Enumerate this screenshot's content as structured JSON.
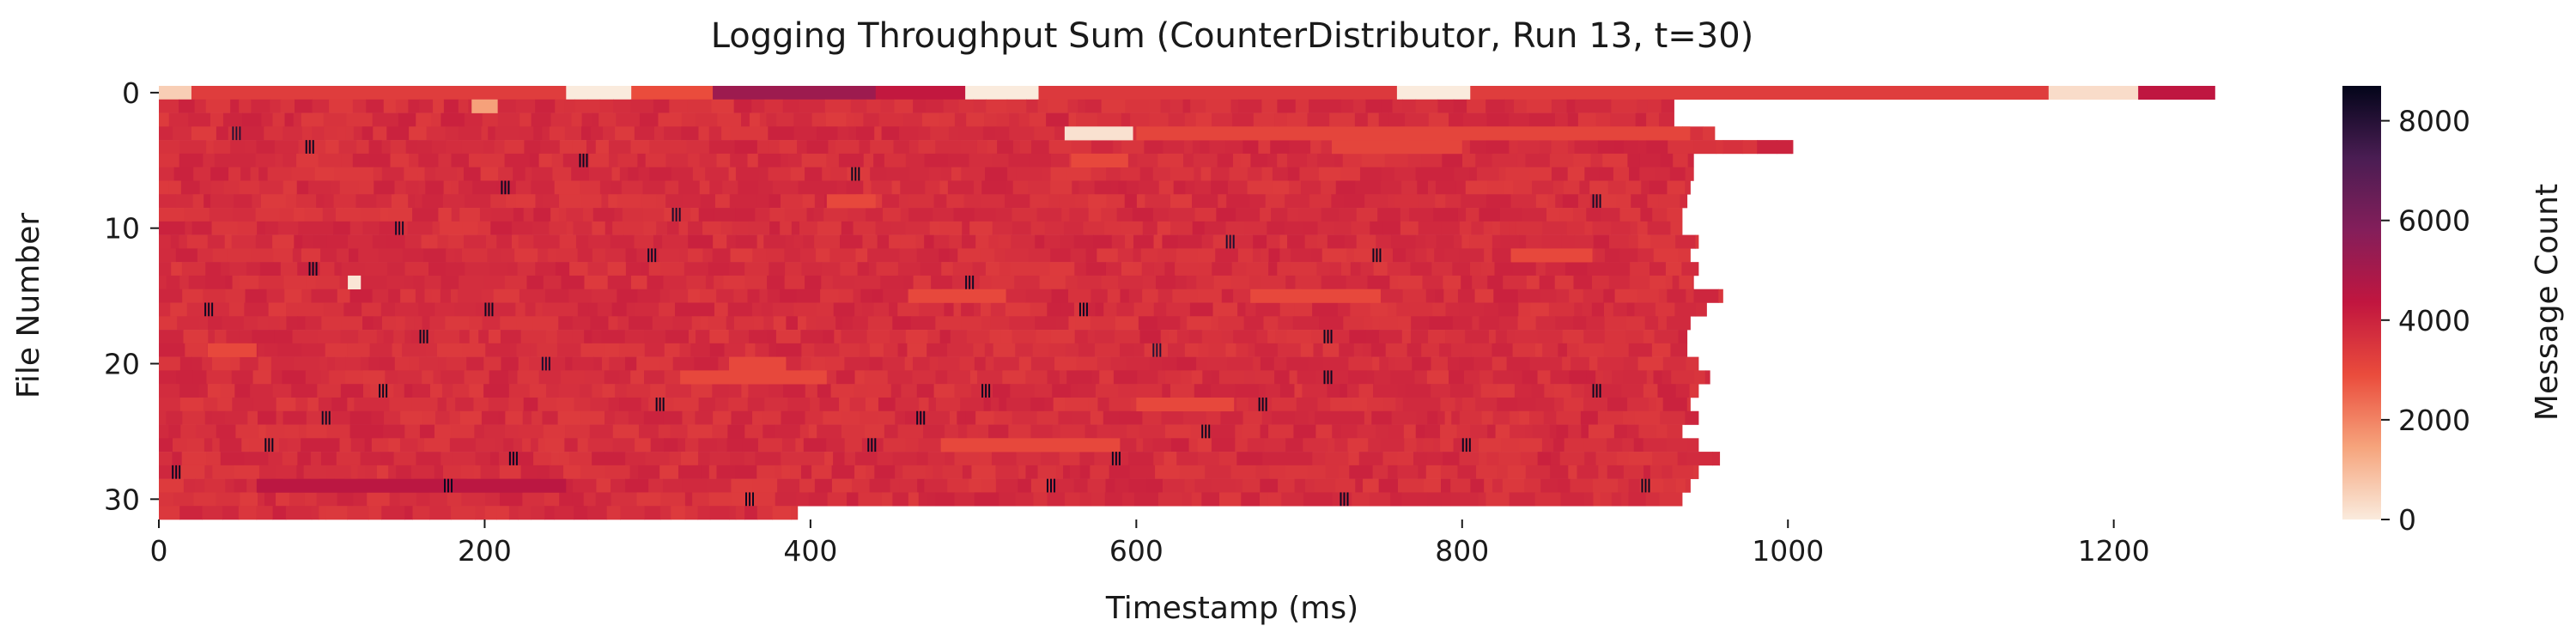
{
  "chart_data": {
    "type": "heatmap",
    "title": "Logging Throughput Sum (CounterDistributor, Run 13, t=30)",
    "xlabel": "Timestamp (ms)",
    "ylabel": "File Number",
    "xlim": [
      0,
      1265
    ],
    "ylim": [
      0,
      32
    ],
    "x_ticks": [
      0,
      200,
      400,
      600,
      800,
      1000,
      1200
    ],
    "y_ticks": [
      0,
      10,
      20,
      30
    ],
    "colorbar": {
      "label": "Message Count",
      "range": [
        0,
        8700
      ],
      "ticks": [
        0,
        2000,
        4000,
        6000,
        8000
      ],
      "colormap": [
        "#faebdd",
        "#f6a47c",
        "#ea4c3c",
        "#c1163f",
        "#841e5a",
        "#4a1d53",
        "#03051a"
      ]
    },
    "typical_value": 3700,
    "row_end_ms": [
      1262,
      930,
      930,
      955,
      1003,
      942,
      942,
      940,
      938,
      935,
      935,
      945,
      940,
      945,
      942,
      960,
      950,
      940,
      938,
      938,
      945,
      952,
      945,
      940,
      945,
      935,
      945,
      958,
      945,
      940,
      935,
      392
    ],
    "row0_segments": [
      {
        "from": 0,
        "to": 20,
        "value": 600
      },
      {
        "from": 20,
        "to": 250,
        "value": 3300
      },
      {
        "from": 250,
        "to": 290,
        "value": 0
      },
      {
        "from": 290,
        "to": 340,
        "value": 2900
      },
      {
        "from": 340,
        "to": 440,
        "value": 5200
      },
      {
        "from": 440,
        "to": 495,
        "value": 4300
      },
      {
        "from": 495,
        "to": 540,
        "value": 0
      },
      {
        "from": 540,
        "to": 760,
        "value": 3400
      },
      {
        "from": 760,
        "to": 805,
        "value": 0
      },
      {
        "from": 805,
        "to": 1160,
        "value": 3300
      },
      {
        "from": 1160,
        "to": 1215,
        "value": 300
      },
      {
        "from": 1215,
        "to": 1262,
        "value": 4400
      }
    ],
    "low_value_patches": [
      {
        "row": 1,
        "from": 192,
        "to": 208,
        "value": 1500
      },
      {
        "row": 3,
        "from": 556,
        "to": 598,
        "value": 200
      },
      {
        "row": 14,
        "from": 116,
        "to": 124,
        "value": 100
      },
      {
        "row": 3,
        "from": 600,
        "to": 940,
        "value": 3100
      },
      {
        "row": 5,
        "from": 560,
        "to": 595,
        "value": 3000
      },
      {
        "row": 15,
        "from": 460,
        "to": 520,
        "value": 3000
      },
      {
        "row": 15,
        "from": 670,
        "to": 750,
        "value": 3000
      },
      {
        "row": 19,
        "from": 30,
        "to": 60,
        "value": 3000
      },
      {
        "row": 21,
        "from": 320,
        "to": 410,
        "value": 3000
      },
      {
        "row": 26,
        "from": 480,
        "to": 590,
        "value": 3000
      },
      {
        "row": 29,
        "from": 60,
        "to": 250,
        "value": 4500
      },
      {
        "row": 8,
        "from": 410,
        "to": 440,
        "value": 3000
      },
      {
        "row": 12,
        "from": 830,
        "to": 880,
        "value": 3000
      },
      {
        "row": 4,
        "from": 720,
        "to": 800,
        "value": 3100
      },
      {
        "row": 20,
        "from": 350,
        "to": 385,
        "value": 3000
      },
      {
        "row": 23,
        "from": 600,
        "to": 660,
        "value": 3000
      }
    ],
    "spikes": [
      {
        "row": 4,
        "ms": 90,
        "value": 8500
      },
      {
        "row": 5,
        "ms": 258,
        "value": 8500
      },
      {
        "row": 7,
        "ms": 210,
        "value": 8500
      },
      {
        "row": 6,
        "ms": 425,
        "value": 8500
      },
      {
        "row": 9,
        "ms": 315,
        "value": 8200
      },
      {
        "row": 12,
        "ms": 745,
        "value": 8500
      },
      {
        "row": 13,
        "ms": 92,
        "value": 8500
      },
      {
        "row": 12,
        "ms": 300,
        "value": 8400
      },
      {
        "row": 16,
        "ms": 28,
        "value": 8500
      },
      {
        "row": 16,
        "ms": 200,
        "value": 8500
      },
      {
        "row": 16,
        "ms": 565,
        "value": 8500
      },
      {
        "row": 18,
        "ms": 160,
        "value": 8500
      },
      {
        "row": 18,
        "ms": 715,
        "value": 8500
      },
      {
        "row": 21,
        "ms": 715,
        "value": 8500
      },
      {
        "row": 22,
        "ms": 135,
        "value": 8500
      },
      {
        "row": 22,
        "ms": 505,
        "value": 8500
      },
      {
        "row": 22,
        "ms": 880,
        "value": 8500
      },
      {
        "row": 23,
        "ms": 305,
        "value": 8500
      },
      {
        "row": 23,
        "ms": 675,
        "value": 8500
      },
      {
        "row": 24,
        "ms": 100,
        "value": 8400
      },
      {
        "row": 24,
        "ms": 465,
        "value": 8500
      },
      {
        "row": 25,
        "ms": 640,
        "value": 8500
      },
      {
        "row": 26,
        "ms": 65,
        "value": 8500
      },
      {
        "row": 26,
        "ms": 435,
        "value": 8500
      },
      {
        "row": 26,
        "ms": 800,
        "value": 8500
      },
      {
        "row": 27,
        "ms": 215,
        "value": 8500
      },
      {
        "row": 27,
        "ms": 585,
        "value": 8500
      },
      {
        "row": 28,
        "ms": 8,
        "value": 8500
      },
      {
        "row": 29,
        "ms": 175,
        "value": 8500
      },
      {
        "row": 29,
        "ms": 545,
        "value": 8500
      },
      {
        "row": 29,
        "ms": 910,
        "value": 8500
      },
      {
        "row": 30,
        "ms": 360,
        "value": 8500
      },
      {
        "row": 30,
        "ms": 725,
        "value": 8500
      },
      {
        "row": 10,
        "ms": 145,
        "value": 8300
      },
      {
        "row": 3,
        "ms": 45,
        "value": 8000
      },
      {
        "row": 20,
        "ms": 235,
        "value": 8200
      },
      {
        "row": 19,
        "ms": 610,
        "value": 8000
      },
      {
        "row": 14,
        "ms": 495,
        "value": 8400
      },
      {
        "row": 11,
        "ms": 655,
        "value": 8100
      },
      {
        "row": 8,
        "ms": 880,
        "value": 8300
      }
    ]
  }
}
